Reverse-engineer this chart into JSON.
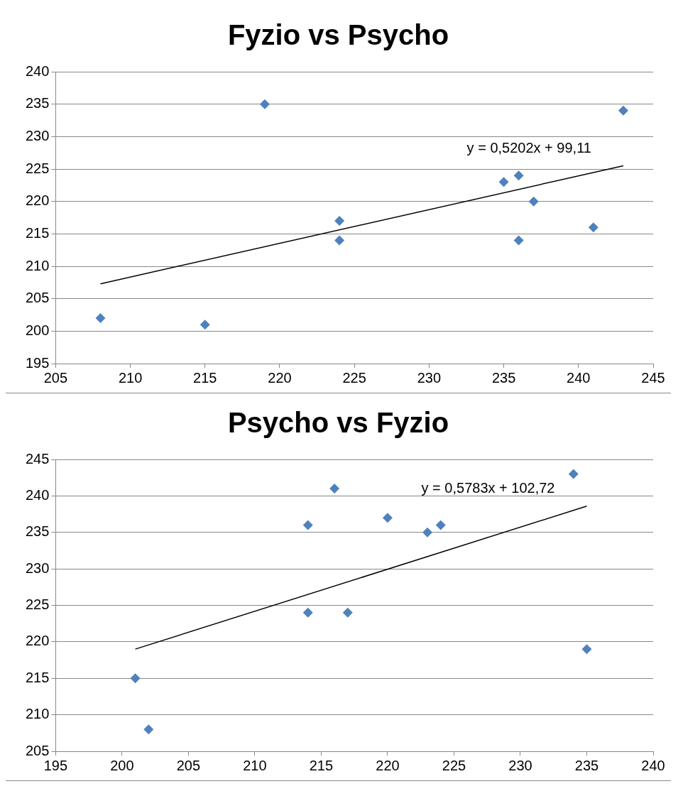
{
  "chart_data": [
    {
      "type": "scatter",
      "title": "Fyzio vs Psycho",
      "xlim": [
        205,
        245
      ],
      "xticks": [
        205,
        210,
        215,
        220,
        225,
        230,
        235,
        240,
        245
      ],
      "ylim": [
        195,
        240
      ],
      "yticks": [
        195,
        200,
        205,
        210,
        215,
        220,
        225,
        230,
        235,
        240
      ],
      "grid": "y",
      "marker": "diamond",
      "series": [
        {
          "color": "#4f81bd",
          "x": [
            208,
            215,
            219,
            224,
            224,
            235,
            236,
            236,
            237,
            241,
            243
          ],
          "values": [
            202,
            201,
            235,
            217,
            214,
            223,
            224,
            214,
            220,
            216,
            234
          ]
        },
        {
          "type": "line",
          "color": "#000000",
          "marker": "none",
          "x": [
            208,
            243
          ],
          "values": [
            207.3,
            225.5
          ]
        }
      ],
      "annotations": [
        "y = 0,5202x + 99,11"
      ]
    },
    {
      "type": "scatter",
      "title": "Psycho vs Fyzio",
      "xlim": [
        195,
        240
      ],
      "xticks": [
        195,
        200,
        205,
        210,
        215,
        220,
        225,
        230,
        235,
        240
      ],
      "ylim": [
        205,
        245
      ],
      "yticks": [
        205,
        210,
        215,
        220,
        225,
        230,
        235,
        240,
        245
      ],
      "grid": "y",
      "marker": "diamond",
      "series": [
        {
          "color": "#4f81bd",
          "x": [
            202,
            201,
            235,
            217,
            214,
            223,
            224,
            214,
            220,
            216,
            234
          ],
          "values": [
            208,
            215,
            219,
            224,
            224,
            235,
            236,
            236,
            237,
            241,
            243
          ]
        },
        {
          "type": "line",
          "color": "#000000",
          "marker": "none",
          "x": [
            201,
            235
          ],
          "values": [
            219,
            238.6
          ]
        }
      ],
      "annotations": [
        "y = 0,5783x + 102,72"
      ]
    }
  ]
}
